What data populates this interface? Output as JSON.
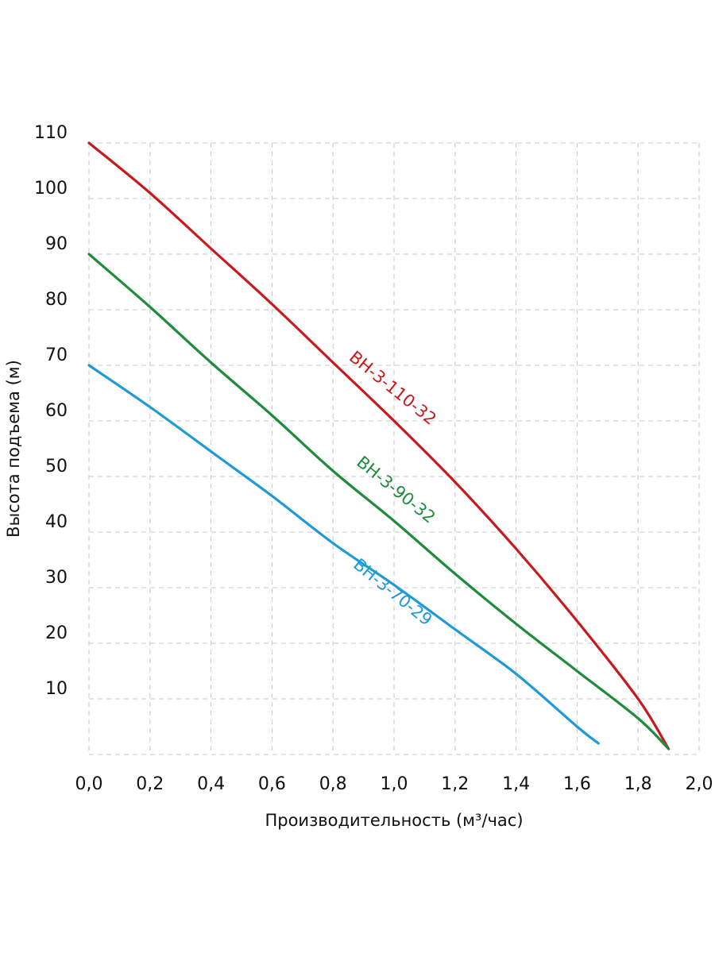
{
  "chart_data": {
    "type": "line",
    "title": "",
    "xlabel": "Производительность (м³/час)",
    "ylabel": "Высота подъема (м)",
    "xlim": [
      0,
      2.0
    ],
    "ylim": [
      0,
      110
    ],
    "x_ticks": [
      "0,0",
      "0,2",
      "0,4",
      "0,6",
      "0,8",
      "1,0",
      "1,2",
      "1,4",
      "1,6",
      "1,8",
      "2,0"
    ],
    "y_ticks": [
      "10",
      "20",
      "30",
      "40",
      "50",
      "60",
      "70",
      "80",
      "90",
      "100",
      "110"
    ],
    "grid": true,
    "series": [
      {
        "name": "ВН-3-110-32",
        "color": "#c8191e",
        "x": [
          0.0,
          0.2,
          0.4,
          0.6,
          0.8,
          1.0,
          1.2,
          1.4,
          1.6,
          1.8,
          1.9
        ],
        "y": [
          110,
          101,
          91,
          81,
          70.5,
          60,
          49,
          37,
          24,
          10,
          1
        ]
      },
      {
        "name": "ВН-3-90-32",
        "color": "#1e8c3c",
        "x": [
          0.0,
          0.2,
          0.4,
          0.6,
          0.8,
          1.0,
          1.2,
          1.4,
          1.6,
          1.8,
          1.9
        ],
        "y": [
          90,
          80.5,
          70.5,
          61,
          51,
          42,
          32.5,
          23.5,
          15,
          6.5,
          1
        ]
      },
      {
        "name": "ВН-3-70-29",
        "color": "#1e9bd7",
        "x": [
          0.0,
          0.2,
          0.4,
          0.6,
          0.8,
          1.0,
          1.2,
          1.4,
          1.6,
          1.67
        ],
        "y": [
          70,
          62.5,
          54.5,
          46.5,
          38,
          30.5,
          22.5,
          14.5,
          5,
          2
        ]
      }
    ]
  }
}
